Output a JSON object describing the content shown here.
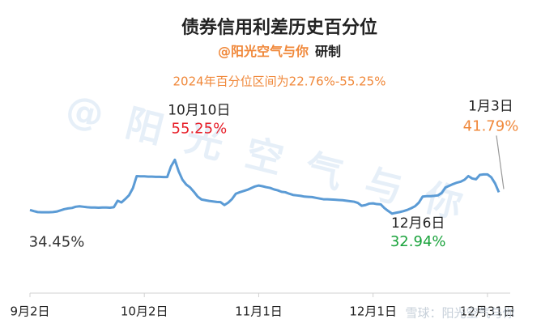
{
  "chart_data": {
    "type": "line",
    "title": "债券信用利差历史百分位",
    "subtitle": {
      "author": "@阳光空气与你",
      "suffix": "研制"
    },
    "note": "2024年百分位区间为22.76%-55.25%",
    "watermark": [
      "@阳光空气与你",
      "雪球：阳光空气与你"
    ],
    "categories": [
      "9月2日",
      null,
      null,
      null,
      null,
      null,
      null,
      null,
      null,
      null,
      null,
      null,
      null,
      null,
      null,
      null,
      null,
      null,
      null,
      null,
      null,
      null,
      null,
      null,
      null,
      null,
      null,
      null,
      null,
      null,
      "10月2日",
      null,
      null,
      null,
      null,
      null,
      null,
      null,
      null,
      null,
      null,
      null,
      null,
      null,
      null,
      null,
      null,
      null,
      null,
      null,
      null,
      null,
      null,
      null,
      null,
      null,
      null,
      null,
      null,
      null,
      "11月1日",
      null,
      null,
      null,
      null,
      null,
      null,
      null,
      null,
      null,
      null,
      null,
      null,
      null,
      null,
      null,
      null,
      null,
      null,
      null,
      null,
      null,
      null,
      null,
      null,
      null,
      null,
      null,
      null,
      null,
      "12月1日",
      null,
      null,
      null,
      null,
      null,
      null,
      null,
      null,
      null,
      null,
      null,
      null,
      null,
      null,
      null,
      null,
      null,
      null,
      null,
      null,
      null,
      null,
      null,
      null,
      null,
      null,
      null,
      null,
      null,
      "12月31日",
      null,
      null,
      null
    ],
    "series": [
      {
        "name": "百分位",
        "color": "#5b9bd5",
        "values": [
          34.45,
          34.0,
          33.6,
          33.5,
          33.5,
          33.5,
          33.6,
          33.8,
          34.3,
          34.8,
          35.1,
          35.3,
          35.8,
          36.0,
          35.8,
          35.6,
          35.5,
          35.5,
          35.4,
          35.5,
          35.5,
          35.4,
          35.6,
          38.3,
          37.6,
          39.0,
          40.6,
          43.5,
          48.5,
          48.4,
          48.4,
          48.3,
          48.3,
          48.2,
          48.2,
          48.1,
          48.1,
          52.5,
          55.25,
          50.5,
          47.0,
          45.0,
          43.8,
          42.0,
          40.0,
          38.8,
          38.5,
          38.2,
          38.0,
          37.8,
          37.7,
          36.5,
          37.5,
          39.0,
          41.2,
          41.8,
          42.3,
          42.8,
          43.5,
          44.2,
          44.6,
          44.3,
          43.9,
          43.6,
          43.0,
          42.6,
          42.0,
          41.8,
          41.2,
          40.7,
          40.5,
          40.3,
          40.0,
          39.9,
          39.8,
          39.5,
          39.2,
          38.9,
          38.9,
          38.8,
          38.7,
          38.6,
          38.5,
          38.3,
          38.1,
          37.9,
          37.4,
          36.2,
          36.5,
          37.1,
          37.2,
          36.9,
          36.8,
          35.2,
          34.0,
          32.94,
          33.3,
          33.6,
          34.0,
          34.5,
          35.2,
          36.0,
          37.5,
          40.0,
          40.2,
          40.2,
          40.3,
          40.5,
          41.5,
          43.8,
          44.5,
          45.2,
          45.8,
          46.2,
          47.0,
          48.5,
          47.5,
          47.2,
          49.0,
          49.2,
          49.2,
          48.0,
          45.5,
          41.79
        ]
      }
    ],
    "annotations": [
      {
        "value": 34.45,
        "value_label": "34.45%",
        "color": "#333333"
      },
      {
        "date": "10月10日",
        "value": 55.25,
        "value_label": "55.25%",
        "color": "#e8202a"
      },
      {
        "date": "12月6日",
        "value": 32.94,
        "value_label": "32.94%",
        "color": "#1aa33c"
      },
      {
        "date": "1月3日",
        "value": 41.79,
        "value_label": "41.79%",
        "color": "#f0883a"
      }
    ],
    "ylim": [
      0,
      100
    ]
  }
}
